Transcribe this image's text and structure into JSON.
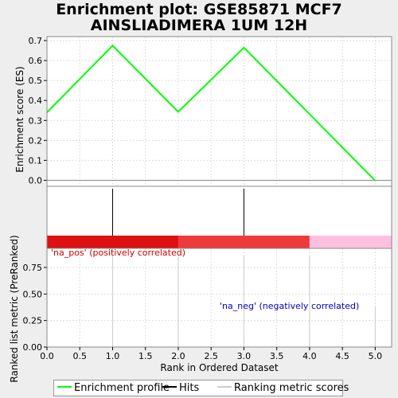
{
  "title": [
    "Enrichment plot: GSE85871 MCF7",
    "AINSLIADIMERA 1UM 12H"
  ],
  "chart_data": {
    "type": "line",
    "es_plot": {
      "ylabel": "Enrichment score (ES)",
      "ylim": [
        -0.03,
        0.72
      ],
      "yticks": [
        "0.0",
        "0.1",
        "0.2",
        "0.3",
        "0.4",
        "0.5",
        "0.6",
        "0.7"
      ],
      "series": [
        {
          "color": "#00ff00",
          "x": [
            0.0,
            1.0,
            2.0,
            3.0,
            5.0
          ],
          "y": [
            0.34,
            0.675,
            0.343,
            0.665,
            -0.002
          ]
        }
      ]
    },
    "hits": [
      1.0,
      3.0
    ],
    "colorbar": [
      {
        "from": 0.0,
        "to": 2.0,
        "color": "#dd1111"
      },
      {
        "from": 2.0,
        "to": 4.0,
        "color": "#ee3a3a"
      },
      {
        "from": 4.0,
        "to": 5.25,
        "color": "#ffc0e0"
      }
    ],
    "metric_plot": {
      "ylabel": "Ranked list metric (PreRanked)",
      "ylim": [
        0.0,
        0.93
      ],
      "yticks": [
        "0.00",
        "0.25",
        "0.50",
        "0.75"
      ],
      "x": [
        1.0,
        2.0,
        3.0,
        4.0,
        5.0
      ],
      "values": [
        0.86,
        0.86,
        0.86,
        0.86,
        0.38
      ],
      "pos_label": "'na_pos' (positively correlated)",
      "neg_label": "'na_neg' (negatively correlated)",
      "pos_color": "#cc0000",
      "neg_color": "#0000cc"
    },
    "xlabel": "Rank in Ordered Dataset",
    "xlim": [
      0.0,
      5.25
    ],
    "xticks": [
      "0.0",
      "0.5",
      "1.0",
      "1.5",
      "2.0",
      "2.5",
      "3.0",
      "3.5",
      "4.0",
      "4.5",
      "5.0"
    ]
  },
  "legend": {
    "enrichment_profile": "Enrichment profile",
    "hits": "Hits",
    "ranking_metric": "Ranking metric scores",
    "profile_color": "#00ff00",
    "hits_color": "#000000",
    "metric_color": "#cccccc"
  }
}
